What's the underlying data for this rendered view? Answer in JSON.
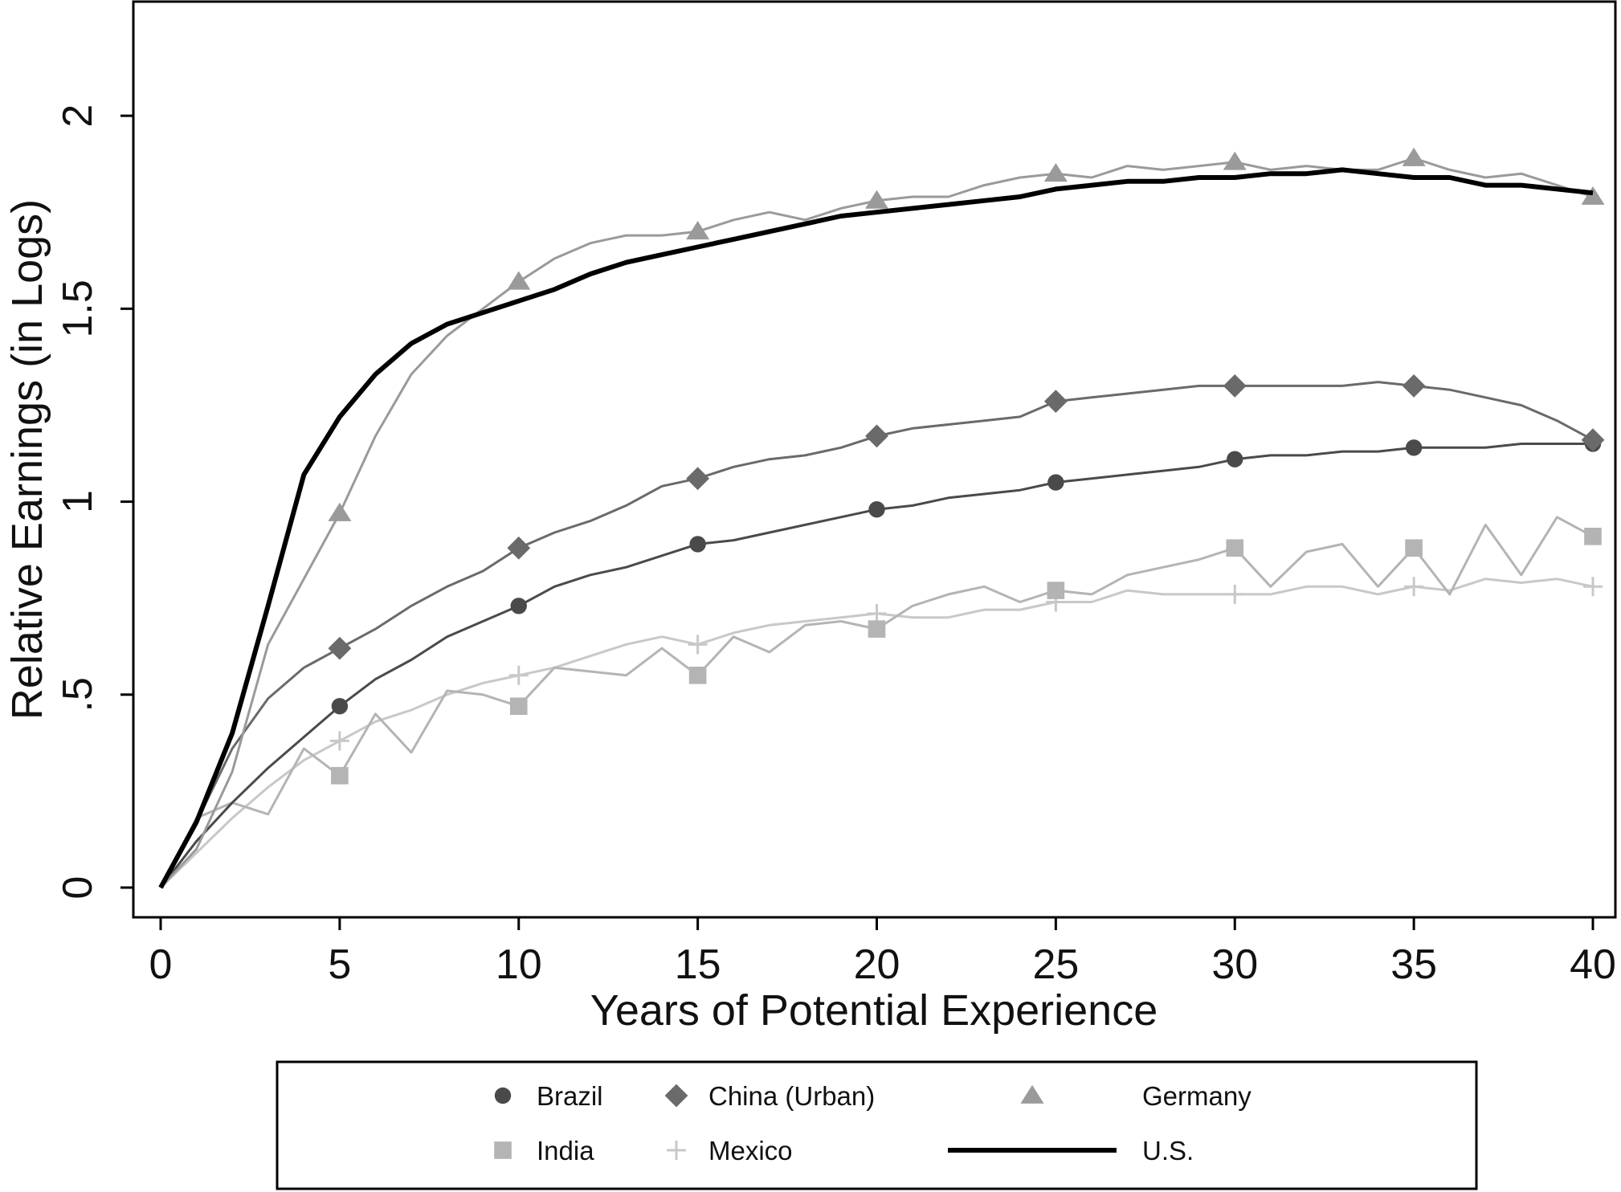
{
  "chart_data": {
    "type": "line",
    "title": "",
    "xlabel": "Years of Potential Experience",
    "ylabel": "Relative Earnings (in Logs)",
    "xlim": [
      0,
      40
    ],
    "ylim": [
      0,
      2.3
    ],
    "xticks": [
      0,
      5,
      10,
      15,
      20,
      25,
      30,
      35,
      40
    ],
    "xtick_labels": [
      "0",
      "5",
      "10",
      "15",
      "20",
      "25",
      "30",
      "35",
      "40"
    ],
    "yticks": [
      0,
      0.5,
      1,
      1.5,
      2
    ],
    "ytick_labels": [
      "0",
      ".5",
      "1",
      "1.5",
      "2"
    ],
    "grid": false,
    "legend_position": "bottom",
    "series": [
      {
        "name": "Brazil",
        "color": "#4a4a4a",
        "marker": "circle",
        "x": [
          0,
          1,
          2,
          3,
          4,
          5,
          6,
          7,
          8,
          9,
          10,
          11,
          12,
          13,
          14,
          15,
          16,
          17,
          18,
          19,
          20,
          21,
          22,
          23,
          24,
          25,
          26,
          27,
          28,
          29,
          30,
          31,
          32,
          33,
          34,
          35,
          36,
          37,
          38,
          39,
          40
        ],
        "y": [
          0,
          0.12,
          0.22,
          0.31,
          0.39,
          0.47,
          0.54,
          0.59,
          0.65,
          0.69,
          0.73,
          0.78,
          0.81,
          0.83,
          0.86,
          0.89,
          0.9,
          0.92,
          0.94,
          0.96,
          0.98,
          0.99,
          1.01,
          1.02,
          1.03,
          1.05,
          1.06,
          1.07,
          1.08,
          1.09,
          1.11,
          1.12,
          1.12,
          1.13,
          1.13,
          1.14,
          1.14,
          1.14,
          1.15,
          1.15,
          1.15
        ]
      },
      {
        "name": "China (Urban)",
        "color": "#6a6a6a",
        "marker": "diamond",
        "x": [
          0,
          1,
          2,
          3,
          4,
          5,
          6,
          7,
          8,
          9,
          10,
          11,
          12,
          13,
          14,
          15,
          16,
          17,
          18,
          19,
          20,
          21,
          22,
          23,
          24,
          25,
          26,
          27,
          28,
          29,
          30,
          31,
          32,
          33,
          34,
          35,
          36,
          37,
          38,
          39,
          40
        ],
        "y": [
          0,
          0.17,
          0.36,
          0.49,
          0.57,
          0.62,
          0.67,
          0.73,
          0.78,
          0.82,
          0.88,
          0.92,
          0.95,
          0.99,
          1.04,
          1.06,
          1.09,
          1.11,
          1.12,
          1.14,
          1.17,
          1.19,
          1.2,
          1.21,
          1.22,
          1.26,
          1.27,
          1.28,
          1.29,
          1.3,
          1.3,
          1.3,
          1.3,
          1.3,
          1.31,
          1.3,
          1.29,
          1.27,
          1.25,
          1.21,
          1.16
        ]
      },
      {
        "name": "Germany",
        "color": "#9a9a9a",
        "marker": "triangle",
        "x": [
          0,
          1,
          2,
          3,
          4,
          5,
          6,
          7,
          8,
          9,
          10,
          11,
          12,
          13,
          14,
          15,
          16,
          17,
          18,
          19,
          20,
          21,
          22,
          23,
          24,
          25,
          26,
          27,
          28,
          29,
          30,
          31,
          32,
          33,
          34,
          35,
          36,
          37,
          38,
          39,
          40
        ],
        "y": [
          0,
          0.1,
          0.3,
          0.63,
          0.8,
          0.97,
          1.17,
          1.33,
          1.43,
          1.5,
          1.57,
          1.63,
          1.67,
          1.69,
          1.69,
          1.7,
          1.73,
          1.75,
          1.73,
          1.76,
          1.78,
          1.79,
          1.79,
          1.82,
          1.84,
          1.85,
          1.84,
          1.87,
          1.86,
          1.87,
          1.88,
          1.86,
          1.87,
          1.86,
          1.86,
          1.89,
          1.86,
          1.84,
          1.85,
          1.82,
          1.79
        ]
      },
      {
        "name": "India",
        "color": "#b4b4b4",
        "marker": "square",
        "x": [
          0,
          1,
          2,
          3,
          4,
          5,
          6,
          7,
          8,
          9,
          10,
          11,
          12,
          13,
          14,
          15,
          16,
          17,
          18,
          19,
          20,
          21,
          22,
          23,
          24,
          25,
          26,
          27,
          28,
          29,
          30,
          31,
          32,
          33,
          34,
          35,
          36,
          37,
          38,
          39,
          40
        ],
        "y": [
          0,
          0.18,
          0.22,
          0.19,
          0.36,
          0.29,
          0.45,
          0.35,
          0.51,
          0.5,
          0.47,
          0.57,
          0.56,
          0.55,
          0.62,
          0.55,
          0.65,
          0.61,
          0.68,
          0.69,
          0.67,
          0.73,
          0.76,
          0.78,
          0.74,
          0.77,
          0.76,
          0.81,
          0.83,
          0.85,
          0.88,
          0.78,
          0.87,
          0.89,
          0.78,
          0.88,
          0.76,
          0.94,
          0.81,
          0.96,
          0.91
        ]
      },
      {
        "name": "Mexico",
        "color": "#c8c8c8",
        "marker": "plus",
        "x": [
          0,
          1,
          2,
          3,
          4,
          5,
          6,
          7,
          8,
          9,
          10,
          11,
          12,
          13,
          14,
          15,
          16,
          17,
          18,
          19,
          20,
          21,
          22,
          23,
          24,
          25,
          26,
          27,
          28,
          29,
          30,
          31,
          32,
          33,
          34,
          35,
          36,
          37,
          38,
          39,
          40
        ],
        "y": [
          0,
          0.09,
          0.18,
          0.26,
          0.33,
          0.38,
          0.43,
          0.46,
          0.5,
          0.53,
          0.55,
          0.57,
          0.6,
          0.63,
          0.65,
          0.63,
          0.66,
          0.68,
          0.69,
          0.7,
          0.71,
          0.7,
          0.7,
          0.72,
          0.72,
          0.74,
          0.74,
          0.77,
          0.76,
          0.76,
          0.76,
          0.76,
          0.78,
          0.78,
          0.76,
          0.78,
          0.77,
          0.8,
          0.79,
          0.8,
          0.78
        ]
      },
      {
        "name": "U.S.",
        "color": "#000000",
        "marker": "none",
        "x": [
          0,
          1,
          2,
          3,
          4,
          5,
          6,
          7,
          8,
          9,
          10,
          11,
          12,
          13,
          14,
          15,
          16,
          17,
          18,
          19,
          20,
          21,
          22,
          23,
          24,
          25,
          26,
          27,
          28,
          29,
          30,
          31,
          32,
          33,
          34,
          35,
          36,
          37,
          38,
          39,
          40
        ],
        "y": [
          0,
          0.17,
          0.4,
          0.73,
          1.07,
          1.22,
          1.33,
          1.41,
          1.46,
          1.49,
          1.52,
          1.55,
          1.59,
          1.62,
          1.64,
          1.66,
          1.68,
          1.7,
          1.72,
          1.74,
          1.75,
          1.76,
          1.77,
          1.78,
          1.79,
          1.81,
          1.82,
          1.83,
          1.83,
          1.84,
          1.84,
          1.85,
          1.85,
          1.86,
          1.85,
          1.84,
          1.84,
          1.82,
          1.82,
          1.81,
          1.8
        ]
      }
    ]
  }
}
